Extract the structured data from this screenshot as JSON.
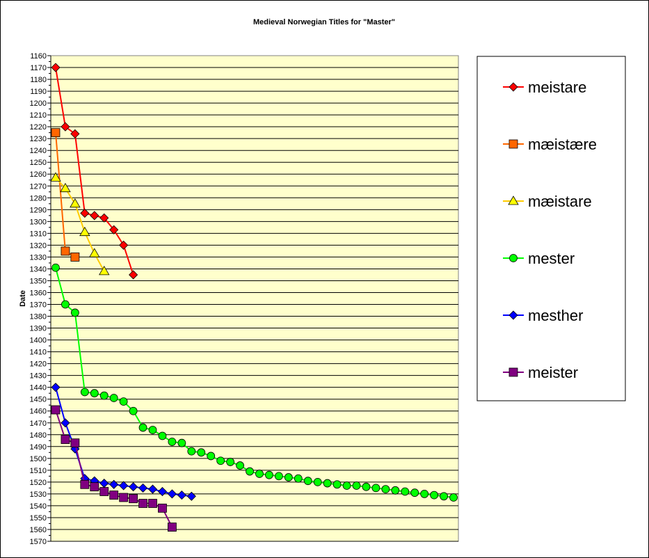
{
  "chart_data": {
    "type": "line",
    "title": "Medieval Norwegian Titles for \"Master\"",
    "xlabel": "",
    "ylabel": "Date",
    "ylim": [
      1160,
      1570
    ],
    "y_inverted": true,
    "y_major_step": 10,
    "grid": true,
    "legend_placement": "right",
    "x_count": 42,
    "series": [
      {
        "name": "meistare",
        "color": "#FF0000",
        "marker": "diamond",
        "fill": "#FF0000",
        "values": [
          1170,
          1220,
          1226,
          1293,
          1295,
          1297,
          1307,
          1320,
          1345
        ]
      },
      {
        "name": "mæistære",
        "color": "#FF6600",
        "marker": "square",
        "fill": "#FF6600",
        "values": [
          1225,
          1325,
          1330
        ]
      },
      {
        "name": "mæistare",
        "color": "#FFCC00",
        "marker": "triangle",
        "fill": "#FFFF00",
        "values": [
          1263,
          1272,
          1285,
          1309,
          1327,
          1342
        ]
      },
      {
        "name": "mester",
        "color": "#00FF00",
        "marker": "circle",
        "fill": "#00FF00",
        "values": [
          1339,
          1370,
          1377,
          1444,
          1445,
          1447,
          1449,
          1452,
          1460,
          1474,
          1476,
          1481,
          1486,
          1487,
          1494,
          1495,
          1498,
          1502,
          1503,
          1506,
          1511,
          1513,
          1514,
          1515,
          1516,
          1517,
          1519,
          1520,
          1521,
          1522,
          1523,
          1523,
          1524,
          1525,
          1526,
          1527,
          1528,
          1529,
          1530,
          1531,
          1532,
          1533
        ]
      },
      {
        "name": "mesther",
        "color": "#0000FF",
        "marker": "diamond",
        "fill": "#0000FF",
        "values": [
          1440,
          1470,
          1492,
          1517,
          1519,
          1521,
          1522,
          1523,
          1524,
          1525,
          1526,
          1528,
          1530,
          1531,
          1532
        ]
      },
      {
        "name": "meister",
        "color": "#800080",
        "marker": "square",
        "fill": "#800080",
        "values": [
          1459,
          1484,
          1487,
          1522,
          1524,
          1528,
          1531,
          1533,
          1534,
          1538,
          1538,
          1542,
          1558
        ]
      }
    ],
    "colors": {
      "plot_bg": "#FFFFCC",
      "grid": "#000000"
    }
  }
}
